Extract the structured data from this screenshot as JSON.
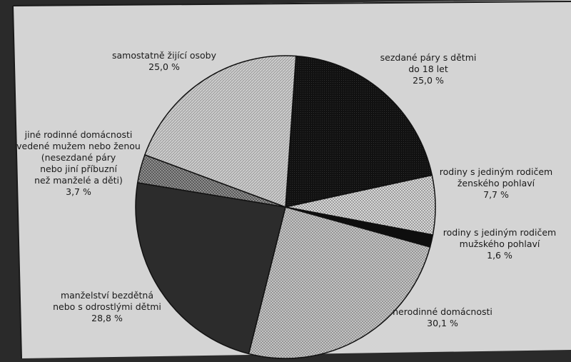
{
  "chart_data": {
    "type": "pie",
    "slices": [
      {
        "label_lines": [
          "sezdané páry s dětmi",
          "do 18 let"
        ],
        "value": 25.0,
        "value_text": "25,0 %",
        "pattern": "dark"
      },
      {
        "label_lines": [
          "rodiny s jediným rodičem",
          "ženského pohlaví"
        ],
        "value": 7.7,
        "value_text": "7,7 %",
        "pattern": "dots"
      },
      {
        "label_lines": [
          "rodiny s jediným rodičem",
          "mužského pohlaví"
        ],
        "value": 1.6,
        "value_text": "1,6 %",
        "pattern": "black"
      },
      {
        "label_lines": [
          "nerodinné domácnosti"
        ],
        "value": 30.1,
        "value_text": "30,1 %",
        "pattern": "crosshatch"
      },
      {
        "label_lines": [
          "manželství bezdětná",
          "nebo s odrostlými dětmi"
        ],
        "value": 28.8,
        "value_text": "28,8 %",
        "pattern": "darkgray"
      },
      {
        "label_lines": [
          "jiné rodinné domácnosti",
          "vedené mužem nebo ženou",
          "(nesezdané páry",
          "nebo jiní příbuzní",
          "než manželé a děti)"
        ],
        "value": 3.7,
        "value_text": "3,7 %",
        "pattern": "checker"
      },
      {
        "label_lines": [
          "samostatně žijící osoby"
        ],
        "value": 25.0,
        "value_text": "25,0 %",
        "pattern": "diagonal"
      }
    ]
  }
}
